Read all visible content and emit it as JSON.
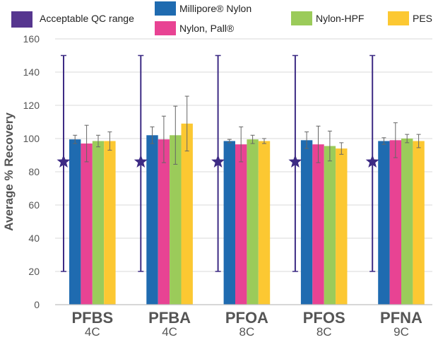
{
  "chart_data": {
    "type": "bar",
    "title": "",
    "xlabel": "",
    "ylabel": "Average % Recovery",
    "ylim": [
      0,
      160
    ],
    "yticks": [
      "0",
      "20",
      "40",
      "60",
      "80",
      "100",
      "120",
      "140",
      "160"
    ],
    "categories": [
      {
        "name": "PFBS",
        "sub": "4C"
      },
      {
        "name": "PFBA",
        "sub": "4C"
      },
      {
        "name": "PFOA",
        "sub": "8C"
      },
      {
        "name": "PFOS",
        "sub": "8C"
      },
      {
        "name": "PFNA",
        "sub": "9C"
      }
    ],
    "series": [
      {
        "name": "Millipore® Nylon",
        "color": "#1f6bb0",
        "values": [
          99.5,
          102,
          98.5,
          99,
          98.5
        ],
        "error": [
          2.5,
          5,
          1,
          5,
          2
        ]
      },
      {
        "name": "Nylon, Pall®",
        "color": "#e84393",
        "values": [
          97,
          99.5,
          96.5,
          96.5,
          99
        ],
        "error": [
          11,
          14,
          10.5,
          11,
          10.5
        ]
      },
      {
        "name": "Nylon-HPF",
        "color": "#9bcb5a",
        "values": [
          98.5,
          102,
          99.5,
          95.5,
          100
        ],
        "error": [
          3.5,
          17.5,
          2.5,
          9,
          2.5
        ]
      },
      {
        "name": "PES",
        "color": "#fcc832",
        "values": [
          98.5,
          109,
          98.5,
          94,
          98.5
        ],
        "error": [
          5.5,
          16.5,
          1.5,
          3.5,
          4
        ]
      }
    ],
    "qc_range": {
      "name": "Acceptable QC range",
      "color": "#3d2b84",
      "low": 20,
      "high": 150,
      "marker": 86
    },
    "legend": [
      {
        "label": "Acceptable QC range",
        "color": "#56368f"
      },
      {
        "label": "Millipore® Nylon",
        "color": "#1f6bb0"
      },
      {
        "label": "Nylon, Pall®",
        "color": "#e84393"
      },
      {
        "label": "Nylon-HPF",
        "color": "#9bcb5a"
      },
      {
        "label": "PES",
        "color": "#fcc832"
      }
    ]
  }
}
